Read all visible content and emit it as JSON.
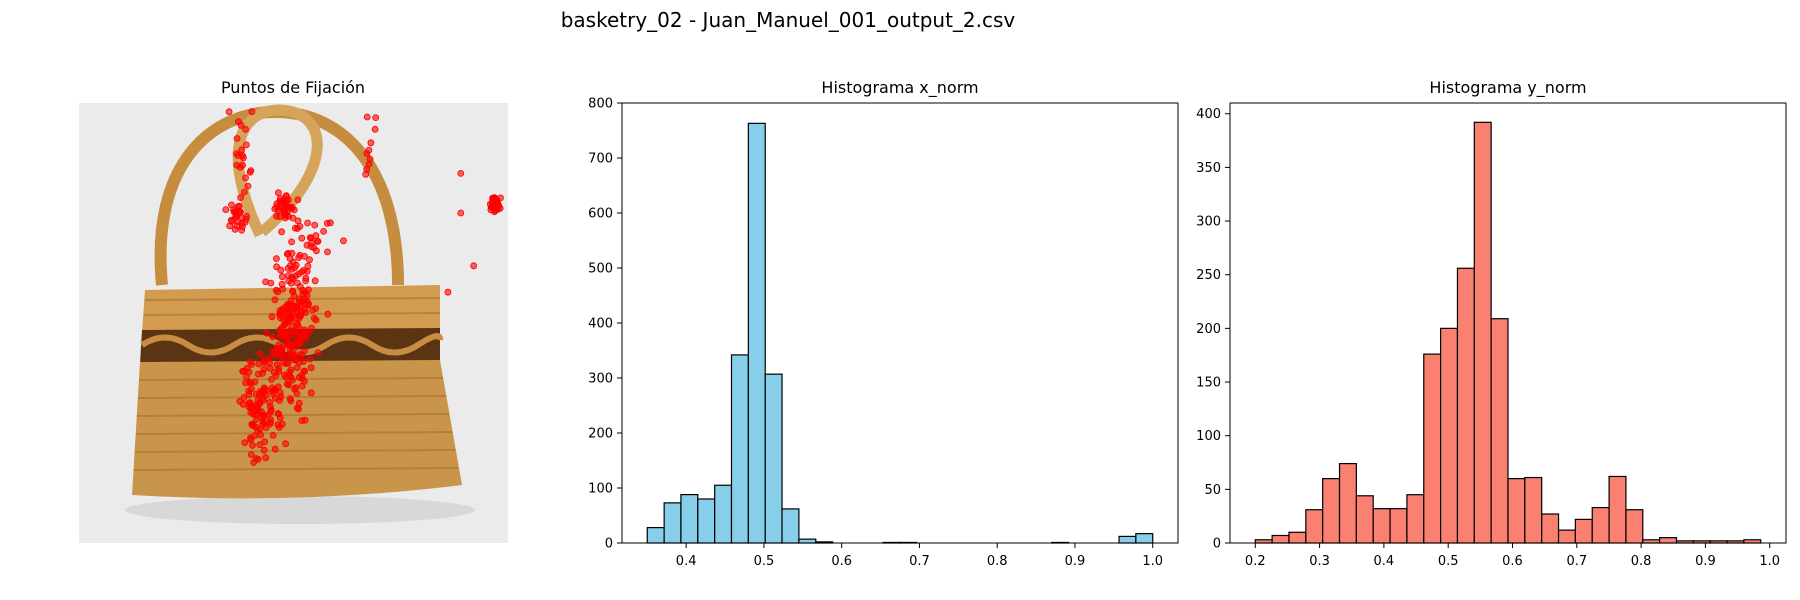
{
  "figure": {
    "suptitle": "basketry_02 - Juan_Manuel_001_output_2.csv"
  },
  "panels": {
    "fixations": {
      "title": "Puntos de Fijación"
    },
    "hist_x": {
      "title": "Histograma x_norm"
    },
    "hist_y": {
      "title": "Histograma y_norm"
    }
  },
  "colors": {
    "fixation_point": "#ff0000",
    "hist_x_fill": "#87ceeb",
    "hist_y_fill": "#fa8072",
    "bar_edge": "#000000",
    "photo_background": "#ebebeb",
    "basket_main": "#c9954a"
  },
  "chart_data": [
    {
      "type": "scatter",
      "title": "Puntos de Fijación",
      "note": "fixation points overlaid on a photo of a wicker basket; axes hidden",
      "x_range": [
        0,
        1
      ],
      "y_range": [
        0,
        1
      ],
      "point_clusters": [
        {
          "cx": 0.5,
          "cy": 0.5,
          "spread_x": 0.025,
          "spread_y": 0.09,
          "n": 220
        },
        {
          "cx": 0.42,
          "cy": 0.68,
          "spread_x": 0.025,
          "spread_y": 0.06,
          "n": 110
        },
        {
          "cx": 0.48,
          "cy": 0.23,
          "spread_x": 0.012,
          "spread_y": 0.02,
          "n": 35
        },
        {
          "cx": 0.37,
          "cy": 0.26,
          "spread_x": 0.012,
          "spread_y": 0.015,
          "n": 25
        },
        {
          "cx": 0.97,
          "cy": 0.23,
          "spread_x": 0.008,
          "spread_y": 0.01,
          "n": 30
        },
        {
          "cx": 0.38,
          "cy": 0.1,
          "spread_x": 0.01,
          "spread_y": 0.08,
          "n": 25
        },
        {
          "cx": 0.55,
          "cy": 0.3,
          "spread_x": 0.03,
          "spread_y": 0.03,
          "n": 18
        },
        {
          "cx": 0.68,
          "cy": 0.1,
          "spread_x": 0.01,
          "spread_y": 0.04,
          "n": 10
        }
      ],
      "isolated_points": [
        [
          0.89,
          0.16
        ],
        [
          0.89,
          0.25
        ],
        [
          0.92,
          0.37
        ],
        [
          0.86,
          0.43
        ],
        [
          0.35,
          0.02
        ],
        [
          0.58,
          0.48
        ]
      ]
    },
    {
      "type": "bar",
      "title": "Histograma x_norm",
      "bin_edges": [
        0.35,
        0.3717,
        0.3933,
        0.415,
        0.4367,
        0.4583,
        0.48,
        0.5017,
        0.5233,
        0.545,
        0.5667,
        0.5883,
        0.61,
        0.6317,
        0.6533,
        0.675,
        0.6967,
        0.7183,
        0.74,
        0.7617,
        0.7833,
        0.805,
        0.8267,
        0.8483,
        0.87,
        0.8917,
        0.9133,
        0.935,
        0.9567,
        0.9783,
        1.0
      ],
      "values": [
        28,
        73,
        88,
        80,
        105,
        342,
        763,
        307,
        62,
        7,
        2,
        0,
        0,
        0,
        1,
        1,
        0,
        0,
        0,
        0,
        0,
        0,
        0,
        0,
        1,
        0,
        0,
        0,
        12,
        17
      ],
      "xlim": [
        0.3175,
        1.0325
      ],
      "ylim": [
        0,
        800
      ],
      "xticks": [
        "0.4",
        "0.5",
        "0.6",
        "0.7",
        "0.8",
        "0.9",
        "1.0"
      ],
      "yticks": [
        "0",
        "100",
        "200",
        "300",
        "400",
        "500",
        "600",
        "700",
        "800"
      ],
      "grid": false
    },
    {
      "type": "bar",
      "title": "Histograma y_norm",
      "bin_edges": [
        0.2,
        0.2262,
        0.2524,
        0.2786,
        0.3048,
        0.331,
        0.3572,
        0.3834,
        0.4096,
        0.4358,
        0.462,
        0.4882,
        0.5144,
        0.5406,
        0.5668,
        0.593,
        0.6192,
        0.6454,
        0.6716,
        0.6978,
        0.724,
        0.7502,
        0.7764,
        0.8026,
        0.8288,
        0.855,
        0.8812,
        0.9074,
        0.9336,
        0.9598,
        0.986
      ],
      "values": [
        3,
        7,
        10,
        31,
        60,
        74,
        44,
        32,
        32,
        45,
        176,
        200,
        256,
        392,
        209,
        60,
        61,
        27,
        12,
        22,
        33,
        62,
        31,
        3,
        5,
        2,
        2,
        2,
        2,
        3
      ],
      "xlim": [
        0.1607,
        1.0253
      ],
      "ylim": [
        0,
        410
      ],
      "xticks": [
        "0.2",
        "0.3",
        "0.4",
        "0.5",
        "0.6",
        "0.7",
        "0.8",
        "0.9",
        "1.0"
      ],
      "yticks": [
        "0",
        "50",
        "100",
        "150",
        "200",
        "250",
        "300",
        "350",
        "400"
      ],
      "grid": false
    }
  ]
}
